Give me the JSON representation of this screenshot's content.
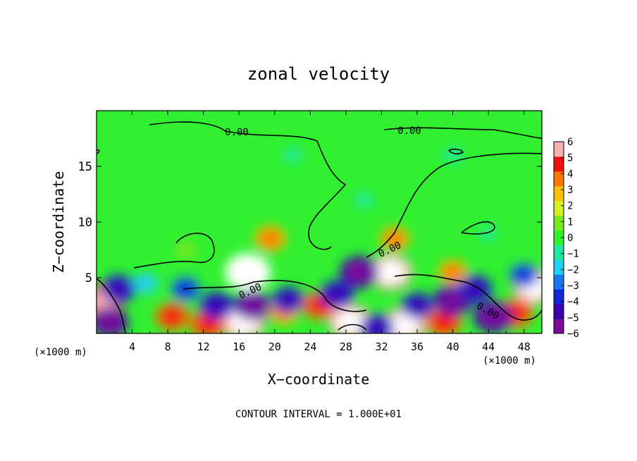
{
  "chart_data": {
    "type": "heatmap",
    "title": "zonal velocity",
    "xlabel": "X−coordinate",
    "ylabel": "Z−coordinate",
    "x_unit_left": "(×1000 m)",
    "x_unit_right": "(×1000 m)",
    "footer": "CONTOUR INTERVAL = 1.000E+01",
    "xlim": [
      0,
      50
    ],
    "ylim": [
      0,
      20
    ],
    "x_ticks": [
      4,
      8,
      12,
      16,
      20,
      24,
      28,
      32,
      36,
      40,
      44,
      48
    ],
    "x_tick_labels": [
      "4",
      "8",
      "12",
      "16",
      "20",
      "24",
      "28",
      "32",
      "36",
      "40",
      "44",
      "48"
    ],
    "y_ticks": [
      5,
      10,
      15
    ],
    "y_tick_labels": [
      "5",
      "10",
      "15"
    ],
    "colorbar": {
      "min": -6,
      "max": 6,
      "tick_values": [
        6,
        5,
        4,
        3,
        2,
        1,
        0,
        -1,
        -2,
        -3,
        -4,
        -5,
        -6
      ],
      "tick_labels": [
        "6",
        "5",
        "4",
        "3",
        "2",
        "1",
        "0",
        "−1",
        "−2",
        "−3",
        "−4",
        "−5",
        "−6"
      ],
      "colors": [
        "#7a0a9a",
        "#3a00b0",
        "#1028d8",
        "#1a78f0",
        "#20d0f0",
        "#20e8a0",
        "#30f030",
        "#78e820",
        "#d8f020",
        "#f8c000",
        "#f87800",
        "#f01010",
        "#f8b0b0"
      ]
    },
    "contour_labels": [
      "0.00",
      "0.00",
      "0.00",
      "0.00",
      "0.00"
    ],
    "background_value": 0.2,
    "features": [
      {
        "x": 17.0,
        "z": 5.5,
        "value": 6.5
      },
      {
        "x": 33.0,
        "z": 5.5,
        "value": 6.0
      },
      {
        "x": 16.5,
        "z": 1.0,
        "value": 6.0
      },
      {
        "x": 28.5,
        "z": 1.0,
        "value": 6.0
      },
      {
        "x": 34.5,
        "z": 0.7,
        "value": 6.0
      },
      {
        "x": 49.2,
        "z": 4.2,
        "value": 6.0
      },
      {
        "x": 0.8,
        "z": 3.0,
        "value": 5.0
      },
      {
        "x": 12.5,
        "z": 0.8,
        "value": 4.5
      },
      {
        "x": 8.5,
        "z": 1.5,
        "value": 4.0
      },
      {
        "x": 21.0,
        "z": 2.0,
        "value": 3.5
      },
      {
        "x": 25.0,
        "z": 2.5,
        "value": 4.0
      },
      {
        "x": 39.0,
        "z": 1.0,
        "value": 4.5
      },
      {
        "x": 47.0,
        "z": 1.8,
        "value": 4.5
      },
      {
        "x": 40.0,
        "z": 5.5,
        "value": 3.0
      },
      {
        "x": 19.5,
        "z": 8.5,
        "value": 3.5
      },
      {
        "x": 33.5,
        "z": 8.5,
        "value": 3.0
      },
      {
        "x": 29.5,
        "z": 5.5,
        "value": -5.0
      },
      {
        "x": 27.0,
        "z": 3.5,
        "value": -4.0
      },
      {
        "x": 13.5,
        "z": 2.5,
        "value": -4.0
      },
      {
        "x": 17.5,
        "z": 2.5,
        "value": -4.5
      },
      {
        "x": 21.5,
        "z": 3.0,
        "value": -3.5
      },
      {
        "x": 10.0,
        "z": 4.0,
        "value": -3.0
      },
      {
        "x": 2.5,
        "z": 4.0,
        "value": -4.0
      },
      {
        "x": 1.5,
        "z": 1.0,
        "value": -4.5
      },
      {
        "x": 31.5,
        "z": 0.5,
        "value": -4.0
      },
      {
        "x": 36.0,
        "z": 2.5,
        "value": -3.5
      },
      {
        "x": 40.0,
        "z": 3.0,
        "value": -5.0
      },
      {
        "x": 42.5,
        "z": 4.0,
        "value": -4.0
      },
      {
        "x": 44.5,
        "z": 1.5,
        "value": -5.0
      },
      {
        "x": 48.0,
        "z": 5.2,
        "value": -3.0
      },
      {
        "x": 5.5,
        "z": 4.5,
        "value": -2.0
      },
      {
        "x": 15.0,
        "z": 11.0,
        "value": 0.8
      },
      {
        "x": 22.0,
        "z": 16.0,
        "value": -0.7
      },
      {
        "x": 40.0,
        "z": 16.0,
        "value": -0.8
      },
      {
        "x": 44.0,
        "z": 9.0,
        "value": -0.5
      },
      {
        "x": 30.0,
        "z": 12.0,
        "value": -0.8
      },
      {
        "x": 10.0,
        "z": 7.5,
        "value": 1.2
      }
    ]
  }
}
